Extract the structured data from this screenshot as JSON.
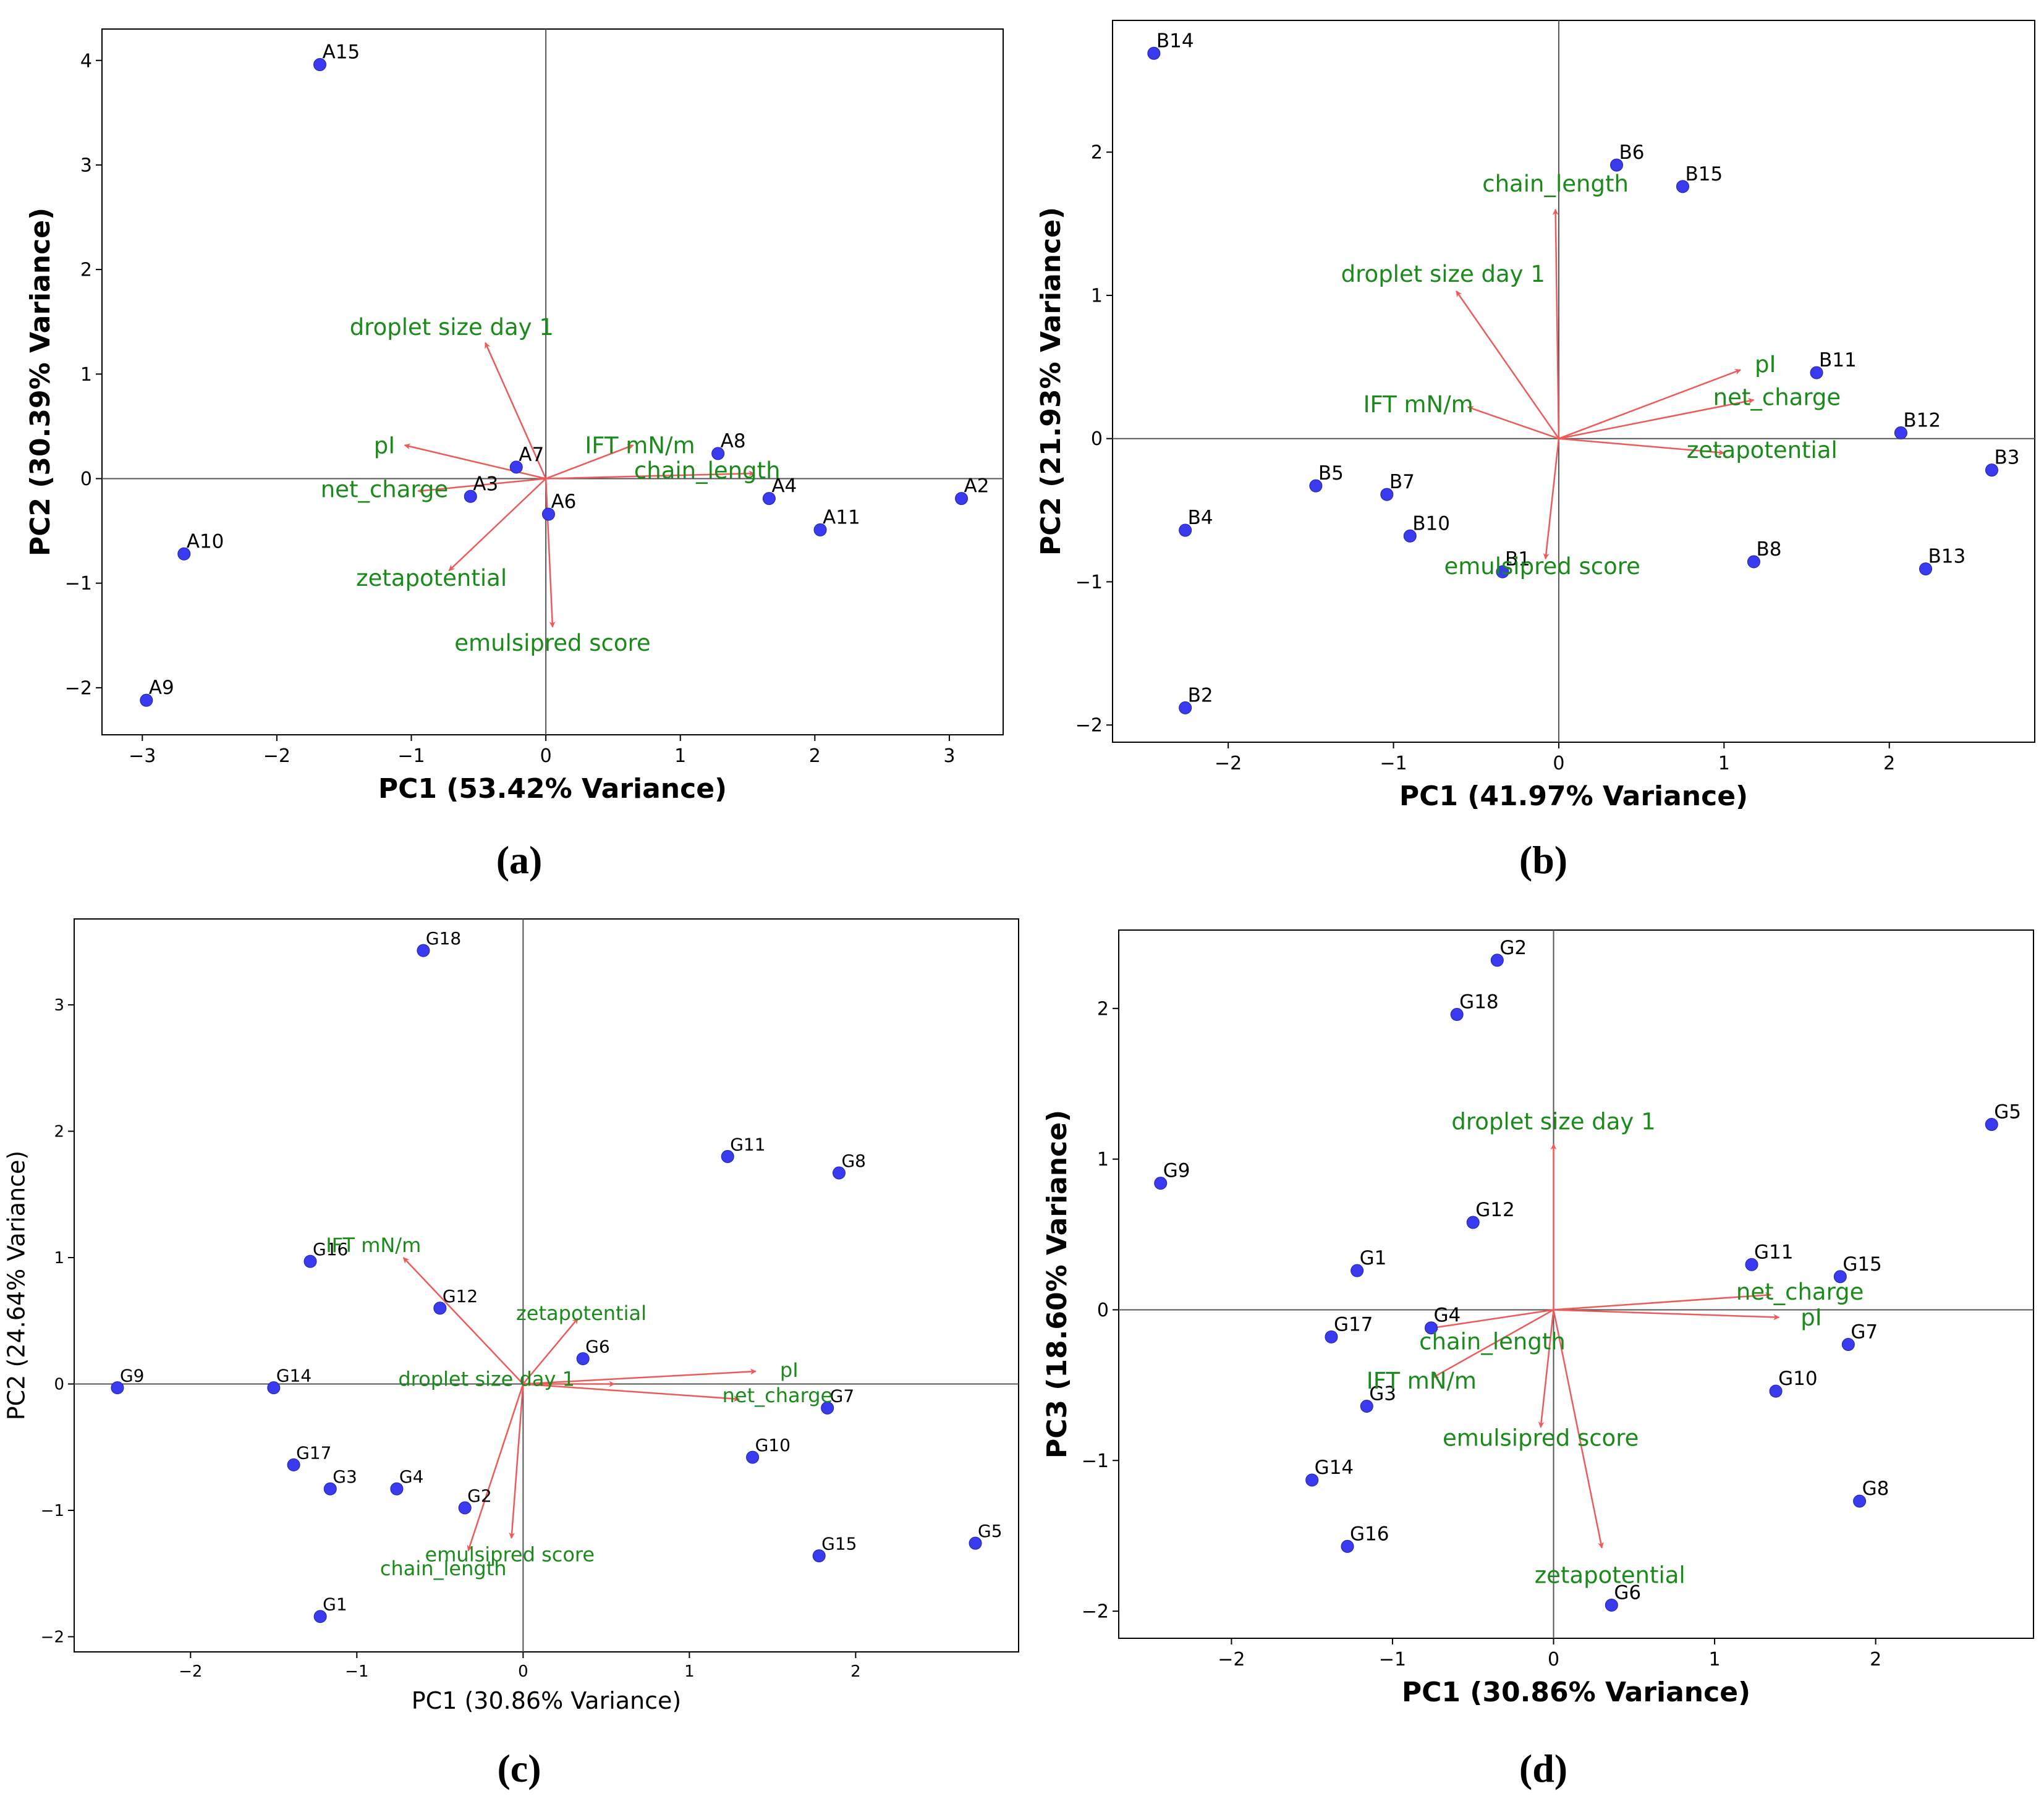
{
  "figure": {
    "panel_labels": [
      "(a)",
      "(b)",
      "(c)",
      "(d)"
    ]
  },
  "colors": {
    "point": "#3a3aee",
    "arrow": "#ee5a5a",
    "loading_text": "#1a8a1a",
    "axis": "#000000",
    "origin_line": "#555555"
  },
  "chart_data": [
    {
      "type": "scatter",
      "subtype": "pca-biplot",
      "title": "",
      "xlabel": "PC1 (53.42% Variance)",
      "ylabel": "PC2 (30.39% Variance)",
      "xlim": [
        -3.3,
        3.4
      ],
      "ylim": [
        -2.45,
        4.3
      ],
      "xticks": [
        -3,
        -2,
        -1,
        0,
        1,
        2,
        3
      ],
      "yticks": [
        -2,
        -1,
        0,
        1,
        2,
        3,
        4
      ],
      "grid": false,
      "points": [
        {
          "label": "A15",
          "x": -1.68,
          "y": 3.96
        },
        {
          "label": "A7",
          "x": -0.22,
          "y": 0.11
        },
        {
          "label": "A8",
          "x": 1.28,
          "y": 0.24
        },
        {
          "label": "A3",
          "x": -0.56,
          "y": -0.17
        },
        {
          "label": "A6",
          "x": 0.02,
          "y": -0.34
        },
        {
          "label": "A4",
          "x": 1.66,
          "y": -0.19
        },
        {
          "label": "A2",
          "x": 3.09,
          "y": -0.19
        },
        {
          "label": "A11",
          "x": 2.04,
          "y": -0.49
        },
        {
          "label": "A10",
          "x": -2.69,
          "y": -0.72
        },
        {
          "label": "A9",
          "x": -2.97,
          "y": -2.12
        }
      ],
      "loadings": [
        {
          "label": "droplet size day 1",
          "x": -0.45,
          "y": 1.3,
          "lx": -0.7,
          "ly": 1.45
        },
        {
          "label": "pI",
          "x": -1.05,
          "y": 0.32,
          "lx": -1.2,
          "ly": 0.32
        },
        {
          "label": "IFT mN/m",
          "x": 0.65,
          "y": 0.32,
          "lx": 0.7,
          "ly": 0.32
        },
        {
          "label": "chain_length",
          "x": 1.55,
          "y": 0.05,
          "lx": 1.2,
          "ly": 0.08
        },
        {
          "label": "net_charge",
          "x": -0.95,
          "y": -0.12,
          "lx": -1.2,
          "ly": -0.1
        },
        {
          "label": "zetapotential",
          "x": -0.72,
          "y": -0.88,
          "lx": -0.85,
          "ly": -0.95
        },
        {
          "label": "emulsipred score",
          "x": 0.05,
          "y": -1.42,
          "lx": 0.05,
          "ly": -1.57
        }
      ]
    },
    {
      "type": "scatter",
      "subtype": "pca-biplot",
      "title": "",
      "xlabel": "PC1 (41.97% Variance)",
      "ylabel": "PC2 (21.93% Variance)",
      "xlim": [
        -2.7,
        2.88
      ],
      "ylim": [
        -2.12,
        2.92
      ],
      "xticks": [
        -2,
        -1,
        0,
        1,
        2
      ],
      "yticks": [
        -2,
        -1,
        0,
        1,
        2
      ],
      "grid": false,
      "points": [
        {
          "label": "B14",
          "x": -2.45,
          "y": 2.69
        },
        {
          "label": "B6",
          "x": 0.35,
          "y": 1.91
        },
        {
          "label": "B15",
          "x": 0.75,
          "y": 1.76
        },
        {
          "label": "B11",
          "x": 1.56,
          "y": 0.46
        },
        {
          "label": "B12",
          "x": 2.07,
          "y": 0.04
        },
        {
          "label": "B3",
          "x": 2.62,
          "y": -0.22
        },
        {
          "label": "B5",
          "x": -1.47,
          "y": -0.33
        },
        {
          "label": "B7",
          "x": -1.04,
          "y": -0.39
        },
        {
          "label": "B10",
          "x": -0.9,
          "y": -0.68
        },
        {
          "label": "B4",
          "x": -2.26,
          "y": -0.64
        },
        {
          "label": "B1",
          "x": -0.34,
          "y": -0.93
        },
        {
          "label": "B8",
          "x": 1.18,
          "y": -0.86
        },
        {
          "label": "B13",
          "x": 2.22,
          "y": -0.91
        },
        {
          "label": "B2",
          "x": -2.26,
          "y": -1.88
        }
      ],
      "loadings": [
        {
          "label": "chain_length",
          "x": -0.02,
          "y": 1.6,
          "lx": -0.02,
          "ly": 1.78
        },
        {
          "label": "droplet size day 1",
          "x": -0.62,
          "y": 1.03,
          "lx": -0.7,
          "ly": 1.15
        },
        {
          "label": "pI",
          "x": 1.1,
          "y": 0.48,
          "lx": 1.25,
          "ly": 0.52
        },
        {
          "label": "net_charge",
          "x": 1.18,
          "y": 0.27,
          "lx": 1.32,
          "ly": 0.29
        },
        {
          "label": "IFT mN/m",
          "x": -0.55,
          "y": 0.22,
          "lx": -0.85,
          "ly": 0.24
        },
        {
          "label": "zetapotential",
          "x": 1.0,
          "y": -0.1,
          "lx": 1.23,
          "ly": -0.08
        },
        {
          "label": "emulsipred score",
          "x": -0.08,
          "y": -0.84,
          "lx": -0.1,
          "ly": -0.89
        }
      ]
    },
    {
      "type": "scatter",
      "subtype": "pca-biplot",
      "title": "",
      "xlabel": "PC1 (30.86% Variance)",
      "ylabel": "PC2 (24.64% Variance)",
      "xlim": [
        -2.7,
        2.98
      ],
      "ylim": [
        -2.12,
        3.68
      ],
      "xticks": [
        -2,
        -1,
        0,
        1,
        2
      ],
      "yticks": [
        -2,
        -1,
        0,
        1,
        2,
        3
      ],
      "grid": false,
      "points": [
        {
          "label": "G18",
          "x": -0.6,
          "y": 3.43
        },
        {
          "label": "G11",
          "x": 1.23,
          "y": 1.8
        },
        {
          "label": "G8",
          "x": 1.9,
          "y": 1.67
        },
        {
          "label": "G16",
          "x": -1.28,
          "y": 0.97
        },
        {
          "label": "G12",
          "x": -0.5,
          "y": 0.6
        },
        {
          "label": "G6",
          "x": 0.36,
          "y": 0.2
        },
        {
          "label": "G9",
          "x": -2.44,
          "y": -0.03
        },
        {
          "label": "G14",
          "x": -1.5,
          "y": -0.03
        },
        {
          "label": "G7",
          "x": 1.83,
          "y": -0.19
        },
        {
          "label": "G10",
          "x": 1.38,
          "y": -0.58
        },
        {
          "label": "G17",
          "x": -1.38,
          "y": -0.64
        },
        {
          "label": "G3",
          "x": -1.16,
          "y": -0.83
        },
        {
          "label": "G4",
          "x": -0.76,
          "y": -0.83
        },
        {
          "label": "G2",
          "x": -0.35,
          "y": -0.98
        },
        {
          "label": "G15",
          "x": 1.78,
          "y": -1.36
        },
        {
          "label": "G5",
          "x": 2.72,
          "y": -1.26
        },
        {
          "label": "G1",
          "x": -1.22,
          "y": -1.84
        }
      ],
      "loadings": [
        {
          "label": "IFT mN/m",
          "x": -0.72,
          "y": 1.0,
          "lx": -0.9,
          "ly": 1.1
        },
        {
          "label": "zetapotential",
          "x": 0.33,
          "y": 0.52,
          "lx": 0.35,
          "ly": 0.56
        },
        {
          "label": "pI",
          "x": 1.4,
          "y": 0.1,
          "lx": 1.6,
          "ly": 0.11
        },
        {
          "label": "droplet size day 1",
          "x": 0.55,
          "y": 0.0,
          "lx": -0.22,
          "ly": 0.04
        },
        {
          "label": "net_charge",
          "x": 1.3,
          "y": -0.12,
          "lx": 1.53,
          "ly": -0.09
        },
        {
          "label": "emulsipred score",
          "x": -0.07,
          "y": -1.22,
          "lx": -0.08,
          "ly": -1.35
        },
        {
          "label": "chain_length",
          "x": -0.33,
          "y": -1.32,
          "lx": -0.48,
          "ly": -1.46
        }
      ]
    },
    {
      "type": "scatter",
      "subtype": "pca-biplot",
      "title": "",
      "xlabel": "PC1 (30.86% Variance)",
      "ylabel": "PC3 (18.60% Variance)",
      "xlim": [
        -2.7,
        2.98
      ],
      "ylim": [
        -2.18,
        2.52
      ],
      "xticks": [
        -2,
        -1,
        0,
        1,
        2
      ],
      "yticks": [
        -2,
        -1,
        0,
        1,
        2
      ],
      "grid": false,
      "points": [
        {
          "label": "G2",
          "x": -0.35,
          "y": 2.32
        },
        {
          "label": "G18",
          "x": -0.6,
          "y": 1.96
        },
        {
          "label": "G5",
          "x": 2.72,
          "y": 1.23
        },
        {
          "label": "G9",
          "x": -2.44,
          "y": 0.84
        },
        {
          "label": "G12",
          "x": -0.5,
          "y": 0.58
        },
        {
          "label": "G1",
          "x": -1.22,
          "y": 0.26
        },
        {
          "label": "G11",
          "x": 1.23,
          "y": 0.3
        },
        {
          "label": "G15",
          "x": 1.78,
          "y": 0.22
        },
        {
          "label": "G4",
          "x": -0.76,
          "y": -0.12
        },
        {
          "label": "G17",
          "x": -1.38,
          "y": -0.18
        },
        {
          "label": "G7",
          "x": 1.83,
          "y": -0.23
        },
        {
          "label": "G10",
          "x": 1.38,
          "y": -0.54
        },
        {
          "label": "G3",
          "x": -1.16,
          "y": -0.64
        },
        {
          "label": "G14",
          "x": -1.5,
          "y": -1.13
        },
        {
          "label": "G8",
          "x": 1.9,
          "y": -1.27
        },
        {
          "label": "G16",
          "x": -1.28,
          "y": -1.57
        },
        {
          "label": "G6",
          "x": 0.36,
          "y": -1.96
        }
      ],
      "loadings": [
        {
          "label": "droplet size day 1",
          "x": 0.0,
          "y": 1.1,
          "lx": 0.0,
          "ly": 1.25
        },
        {
          "label": "net_charge",
          "x": 1.35,
          "y": 0.1,
          "lx": 1.53,
          "ly": 0.12
        },
        {
          "label": "pI",
          "x": 1.4,
          "y": -0.05,
          "lx": 1.6,
          "ly": -0.05
        },
        {
          "label": "chain_length",
          "x": -0.75,
          "y": -0.12,
          "lx": -0.38,
          "ly": -0.21
        },
        {
          "label": "IFT mN/m",
          "x": -0.75,
          "y": -0.45,
          "lx": -0.82,
          "ly": -0.47
        },
        {
          "label": "emulsipred score",
          "x": -0.08,
          "y": -0.78,
          "lx": -0.08,
          "ly": -0.85
        },
        {
          "label": "zetapotential",
          "x": 0.3,
          "y": -1.58,
          "lx": 0.35,
          "ly": -1.76
        }
      ]
    }
  ]
}
